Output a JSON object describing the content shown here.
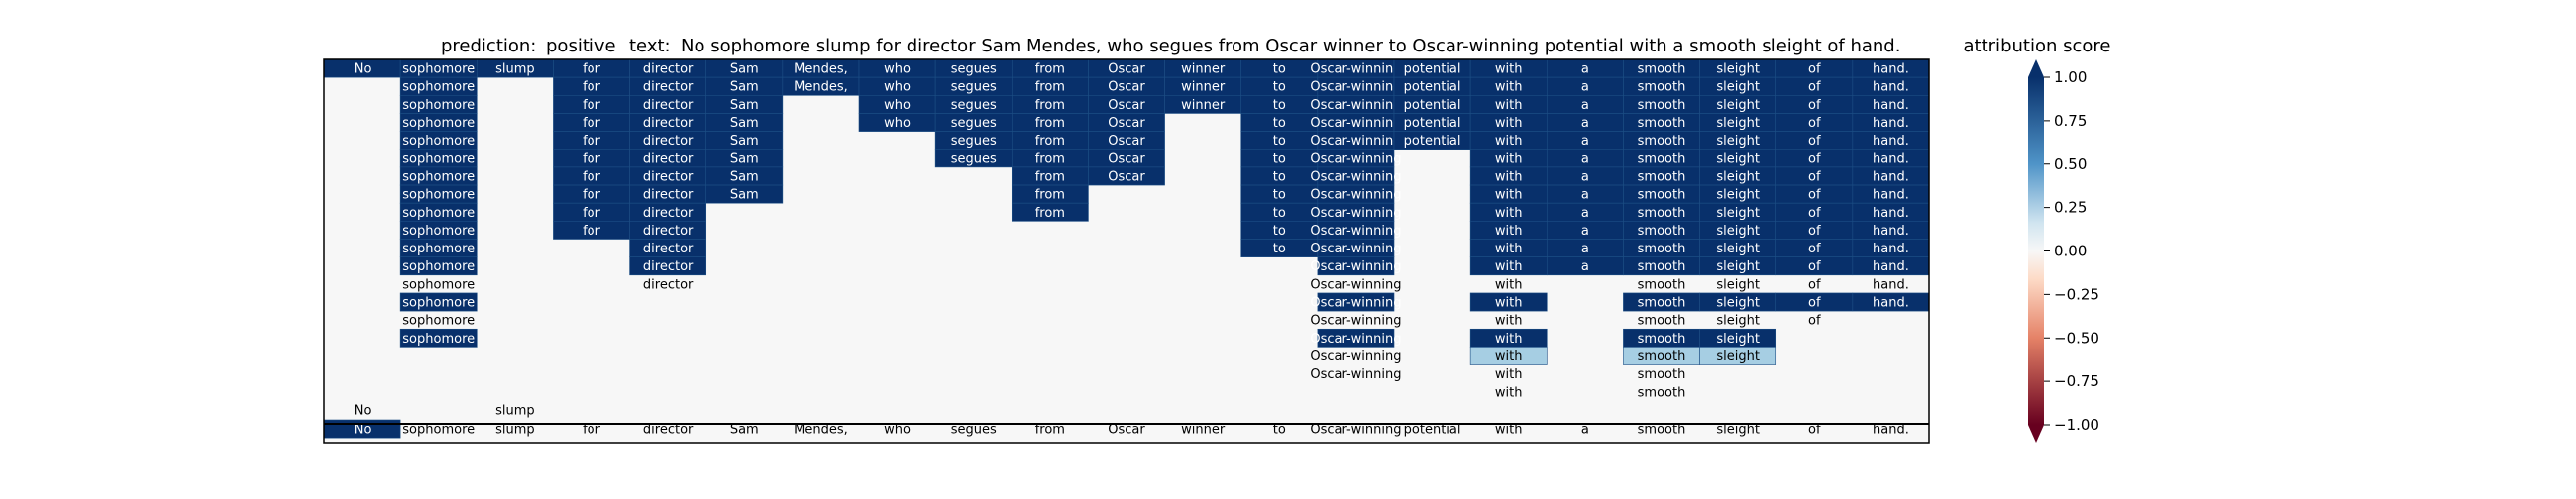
{
  "header": {
    "prediction_label": "prediction:",
    "prediction_value": "positive",
    "text_label": "text:",
    "text_value": "No sophomore slump for director Sam Mendes, who segues from Oscar winner to Oscar-winning potential with a smooth sleight of hand."
  },
  "colorbar": {
    "title": "attribution score",
    "ticks": [
      "1.00",
      "0.75",
      "0.50",
      "0.25",
      "0.00",
      "−0.25",
      "−0.50",
      "−0.75",
      "−1.00"
    ],
    "colors": {
      "pos_strong": "#08306b",
      "pos_mid": "#4f94c8",
      "neutral": "#f7f7f7",
      "neg_mid": "#e58267",
      "neg_strong": "#67001f"
    }
  },
  "chart_data": {
    "type": "heatmap",
    "title": "",
    "columns": [
      "No",
      "sophomore",
      "slump",
      "for",
      "director",
      "Sam",
      "Mendes,",
      "who",
      "segues",
      "from",
      "Oscar",
      "winner",
      "to",
      "Oscar-winning",
      "potential",
      "with",
      "a",
      "smooth",
      "sleight",
      "of",
      "hand."
    ],
    "rows": [
      {
        "words": [
          0,
          1,
          2,
          3,
          4,
          5,
          6,
          7,
          8,
          9,
          10,
          11,
          12,
          13,
          14,
          15,
          16,
          17,
          18,
          19,
          20
        ],
        "scores": {
          "0": 1,
          "1": 1,
          "2": 1,
          "3": 1,
          "4": 1,
          "5": 1,
          "6": 1,
          "7": 1,
          "8": 1,
          "9": 1,
          "10": 1,
          "11": 1,
          "12": 1,
          "13": 1,
          "14": 1,
          "15": 1,
          "16": 1,
          "17": 1,
          "18": 1,
          "19": 1,
          "20": 1
        }
      },
      {
        "words": [
          1,
          3,
          4,
          5,
          6,
          7,
          8,
          9,
          10,
          11,
          12,
          13,
          14,
          15,
          16,
          17,
          18,
          19,
          20
        ],
        "scores": {
          "1": 1,
          "3": 1,
          "4": 1,
          "5": 1,
          "6": 1,
          "7": 1,
          "8": 1,
          "9": 1,
          "10": 1,
          "11": 1,
          "12": 1,
          "13": 1,
          "14": 1,
          "15": 1,
          "16": 1,
          "17": 1,
          "18": 1,
          "19": 1,
          "20": 1
        }
      },
      {
        "words": [
          1,
          3,
          4,
          5,
          7,
          8,
          9,
          10,
          11,
          12,
          13,
          14,
          15,
          16,
          17,
          18,
          19,
          20
        ],
        "scores": {
          "1": 1,
          "3": 1,
          "4": 1,
          "5": 1,
          "7": 1,
          "8": 1,
          "9": 1,
          "10": 1,
          "11": 1,
          "12": 1,
          "13": 1,
          "14": 1,
          "15": 1,
          "16": 1,
          "17": 1,
          "18": 1,
          "19": 1,
          "20": 1
        }
      },
      {
        "words": [
          1,
          3,
          4,
          5,
          7,
          8,
          9,
          10,
          12,
          13,
          14,
          15,
          16,
          17,
          18,
          19,
          20
        ],
        "scores": {
          "1": 1,
          "3": 1,
          "4": 1,
          "5": 1,
          "7": 1,
          "8": 1,
          "9": 1,
          "10": 1,
          "12": 1,
          "13": 1,
          "14": 1,
          "15": 1,
          "16": 1,
          "17": 1,
          "18": 1,
          "19": 1,
          "20": 1
        }
      },
      {
        "words": [
          1,
          3,
          4,
          5,
          8,
          9,
          10,
          12,
          13,
          14,
          15,
          16,
          17,
          18,
          19,
          20
        ],
        "scores": {
          "1": 1,
          "3": 1,
          "4": 1,
          "5": 1,
          "8": 1,
          "9": 1,
          "10": 1,
          "12": 1,
          "13": 1,
          "14": 1,
          "15": 1,
          "16": 1,
          "17": 1,
          "18": 1,
          "19": 1,
          "20": 1
        }
      },
      {
        "words": [
          1,
          3,
          4,
          5,
          8,
          9,
          10,
          12,
          13,
          15,
          16,
          17,
          18,
          19,
          20
        ],
        "scores": {
          "1": 1,
          "3": 1,
          "4": 1,
          "5": 1,
          "8": 1,
          "9": 1,
          "10": 1,
          "12": 1,
          "13": 1,
          "15": 1,
          "16": 1,
          "17": 1,
          "18": 1,
          "19": 1,
          "20": 1
        }
      },
      {
        "words": [
          1,
          3,
          4,
          5,
          9,
          10,
          12,
          13,
          15,
          16,
          17,
          18,
          19,
          20
        ],
        "scores": {
          "1": 1,
          "3": 1,
          "4": 1,
          "5": 1,
          "9": 1,
          "10": 1,
          "12": 1,
          "13": 1,
          "15": 1,
          "16": 1,
          "17": 1,
          "18": 1,
          "19": 1,
          "20": 1
        }
      },
      {
        "words": [
          1,
          3,
          4,
          5,
          9,
          12,
          13,
          15,
          16,
          17,
          18,
          19,
          20
        ],
        "scores": {
          "1": 1,
          "3": 1,
          "4": 1,
          "5": 1,
          "9": 1,
          "12": 1,
          "13": 1,
          "15": 1,
          "16": 1,
          "17": 1,
          "18": 1,
          "19": 1,
          "20": 1
        }
      },
      {
        "words": [
          1,
          3,
          4,
          9,
          12,
          13,
          15,
          16,
          17,
          18,
          19,
          20
        ],
        "scores": {
          "1": 1,
          "3": 1,
          "4": 1,
          "9": 1,
          "12": 1,
          "13": 1,
          "15": 1,
          "16": 1,
          "17": 1,
          "18": 1,
          "19": 1,
          "20": 1
        }
      },
      {
        "words": [
          1,
          3,
          4,
          12,
          13,
          15,
          16,
          17,
          18,
          19,
          20
        ],
        "scores": {
          "1": 1,
          "3": 1,
          "4": 1,
          "12": 1,
          "13": 1,
          "15": 1,
          "16": 1,
          "17": 1,
          "18": 1,
          "19": 1,
          "20": 1
        }
      },
      {
        "words": [
          1,
          4,
          12,
          13,
          15,
          16,
          17,
          18,
          19,
          20
        ],
        "scores": {
          "1": 1,
          "4": 1,
          "12": 1,
          "13": 1,
          "15": 1,
          "16": 1,
          "17": 1,
          "18": 1,
          "19": 1,
          "20": 1
        }
      },
      {
        "words": [
          1,
          4,
          13,
          15,
          16,
          17,
          18,
          19,
          20
        ],
        "scores": {
          "1": 1,
          "4": 1,
          "13": 1,
          "15": 1,
          "16": 1,
          "17": 1,
          "18": 1,
          "19": 1,
          "20": 1
        }
      },
      {
        "words": [
          1,
          4,
          13,
          15,
          17,
          18,
          19,
          20
        ],
        "scores": {}
      },
      {
        "words": [
          1,
          13,
          15,
          17,
          18,
          19,
          20
        ],
        "scores": {
          "1": 1,
          "13": 1,
          "15": 1,
          "17": 1,
          "18": 1,
          "19": 1,
          "20": 1
        }
      },
      {
        "words": [
          1,
          13,
          15,
          17,
          18,
          19
        ],
        "scores": {}
      },
      {
        "words": [
          1,
          13,
          15,
          17,
          18
        ],
        "scores": {
          "1": 1,
          "13": 1,
          "15": 1,
          "17": 1,
          "18": 1
        }
      },
      {
        "words": [
          13,
          15,
          17,
          18
        ],
        "scores": {
          "15": 0.35,
          "17": 0.35,
          "18": 0.35
        }
      },
      {
        "words": [
          13,
          15,
          17
        ],
        "scores": {}
      },
      {
        "words": [
          15,
          17
        ],
        "scores": {}
      },
      {
        "words": [
          0,
          2
        ],
        "scores": {}
      },
      {
        "words": [
          0,
          1,
          2,
          3,
          4,
          5,
          6,
          7,
          8,
          9,
          10,
          11,
          12,
          13,
          14,
          15,
          16,
          17,
          18,
          19,
          20
        ],
        "scores": {
          "0": 1
        }
      }
    ],
    "vmin": -1.0,
    "vmax": 1.0,
    "colormap": "RdBu"
  }
}
